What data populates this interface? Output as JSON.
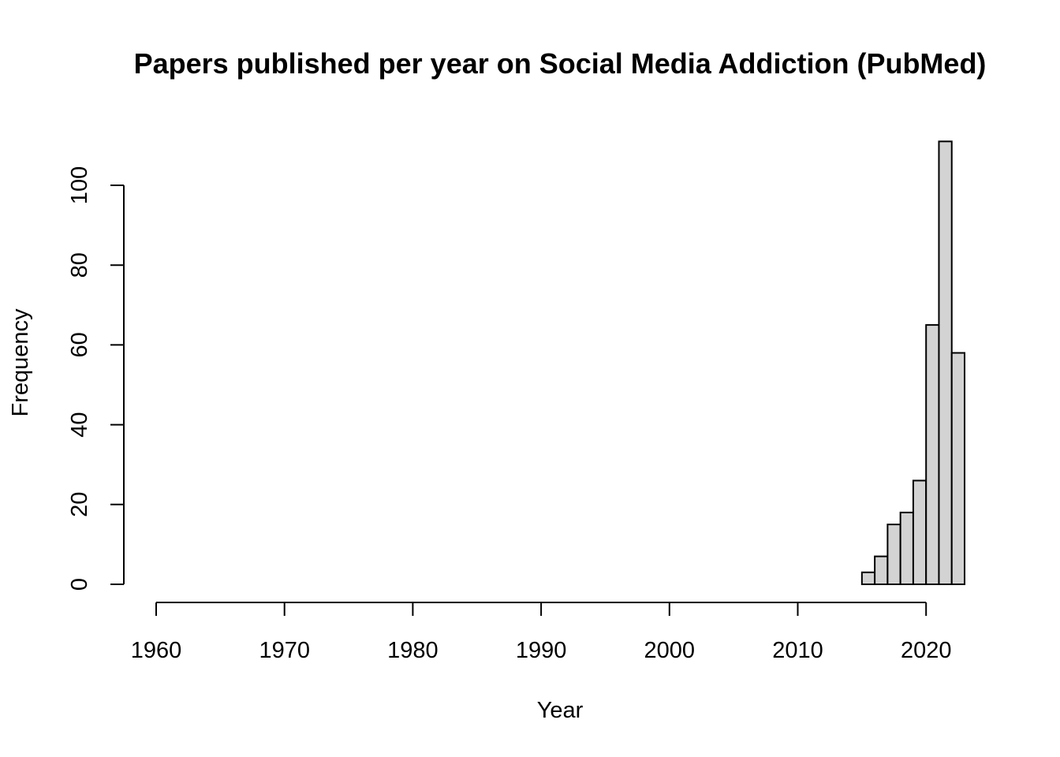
{
  "chart_data": {
    "type": "bar",
    "title": "Papers published per year on Social Media Addiction (PubMed)",
    "xlabel": "Year",
    "ylabel": "Frequency",
    "xlim": [
      1958,
      2023
    ],
    "ylim": [
      0,
      111
    ],
    "x_ticks": [
      "1960",
      "1970",
      "1980",
      "1990",
      "2000",
      "2010",
      "2020"
    ],
    "y_ticks": [
      "0",
      "20",
      "40",
      "60",
      "80",
      "100"
    ],
    "bins": [
      {
        "start": 2015,
        "end": 2016,
        "value": 3
      },
      {
        "start": 2016,
        "end": 2017,
        "value": 7
      },
      {
        "start": 2017,
        "end": 2018,
        "value": 15
      },
      {
        "start": 2018,
        "end": 2019,
        "value": 18
      },
      {
        "start": 2019,
        "end": 2020,
        "value": 26
      },
      {
        "start": 2020,
        "end": 2021,
        "value": 65
      },
      {
        "start": 2021,
        "end": 2022,
        "value": 111
      },
      {
        "start": 2022,
        "end": 2023,
        "value": 58
      }
    ],
    "grid": false,
    "legend": "none",
    "bar_color": "#d3d3d3"
  }
}
